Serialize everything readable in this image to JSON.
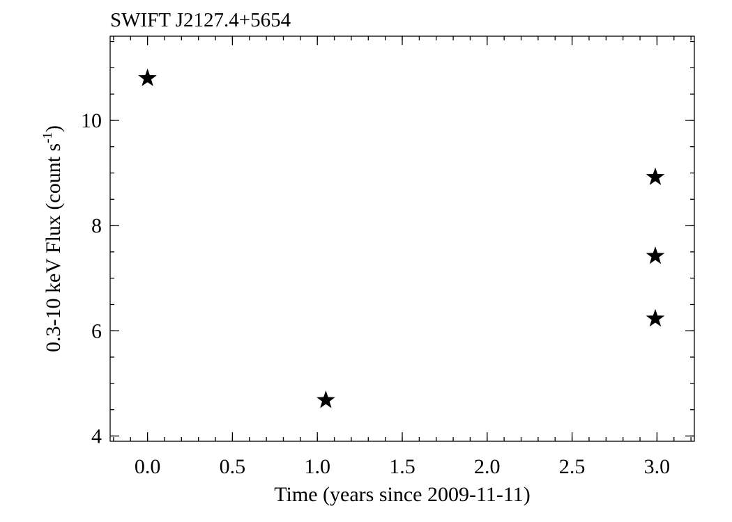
{
  "chart_data": {
    "type": "scatter",
    "title": "SWIFT J2127.4+5654",
    "xlabel": "Time (years since 2009-11-11)",
    "ylabel_main": "0.3-10 keV Flux (count s",
    "ylabel_sup": "-1",
    "ylabel_close": ")",
    "xlim": [
      -0.22,
      3.22
    ],
    "ylim": [
      3.9,
      11.6
    ],
    "x_ticks": [
      0.0,
      0.5,
      1.0,
      1.5,
      2.0,
      2.5,
      3.0
    ],
    "x_tick_labels": [
      "0.0",
      "0.5",
      "1.0",
      "1.5",
      "2.0",
      "2.5",
      "3.0"
    ],
    "x_minor_step": 0.1,
    "y_ticks": [
      4,
      6,
      8,
      10
    ],
    "y_tick_labels": [
      "4",
      "6",
      "8",
      "10"
    ],
    "y_minor_step": 0.5,
    "marker": "star",
    "marker_color": "#000000",
    "grid": false,
    "series": [
      {
        "points": [
          {
            "x": 0.0,
            "y": 10.8
          },
          {
            "x": 1.05,
            "y": 4.68
          },
          {
            "x": 2.99,
            "y": 8.92
          },
          {
            "x": 2.99,
            "y": 7.42
          },
          {
            "x": 2.99,
            "y": 6.23
          }
        ]
      }
    ]
  }
}
